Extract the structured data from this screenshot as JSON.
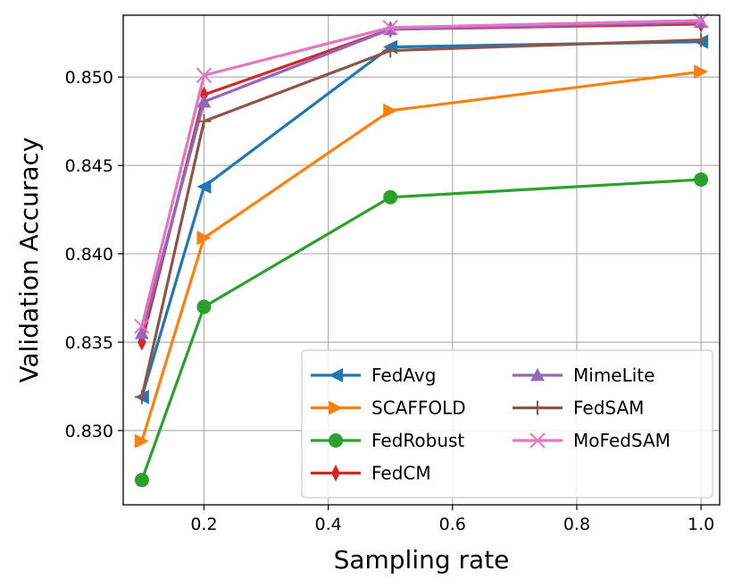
{
  "chart_data": {
    "type": "line",
    "xlabel": "Sampling rate",
    "ylabel": "Validation Accuracy",
    "xlim": [
      0.07,
      1.03
    ],
    "ylim": [
      0.8258,
      0.8535
    ],
    "xticks": [
      0.2,
      0.4,
      0.6,
      0.8,
      1.0
    ],
    "xtick_labels": [
      "0.2",
      "0.4",
      "0.6",
      "0.8",
      "1.0"
    ],
    "yticks": [
      0.83,
      0.835,
      0.84,
      0.845,
      0.85
    ],
    "ytick_labels": [
      "0.830",
      "0.835",
      "0.840",
      "0.845",
      "0.850"
    ],
    "grid": true,
    "legend_position": "lower-right",
    "legend_columns": 2,
    "x": [
      0.1,
      0.2,
      0.5,
      1.0
    ],
    "series": [
      {
        "name": "FedAvg",
        "color": "#1f77b4",
        "marker": "triangle-left",
        "values": [
          0.8319,
          0.8438,
          0.8517,
          0.852
        ]
      },
      {
        "name": "SCAFFOLD",
        "color": "#ff7f0e",
        "marker": "triangle-right",
        "values": [
          0.8294,
          0.8409,
          0.8481,
          0.8503
        ]
      },
      {
        "name": "FedRobust",
        "color": "#2ca02c",
        "marker": "circle",
        "values": [
          0.8272,
          0.837,
          0.8432,
          0.8442
        ]
      },
      {
        "name": "FedCM",
        "color": "#d62728",
        "marker": "thin-diamond",
        "values": [
          0.835,
          0.849,
          0.8527,
          0.853
        ]
      },
      {
        "name": "MimeLite",
        "color": "#9467bd",
        "marker": "triangle-up",
        "values": [
          0.8355,
          0.8486,
          0.8527,
          0.8531
        ]
      },
      {
        "name": "FedSAM",
        "color": "#8c564b",
        "marker": "plus",
        "values": [
          0.8319,
          0.8475,
          0.8515,
          0.8521
        ]
      },
      {
        "name": "MoFedSAM",
        "color": "#e377c2",
        "marker": "x",
        "values": [
          0.8359,
          0.8501,
          0.8528,
          0.8532
        ]
      }
    ]
  }
}
